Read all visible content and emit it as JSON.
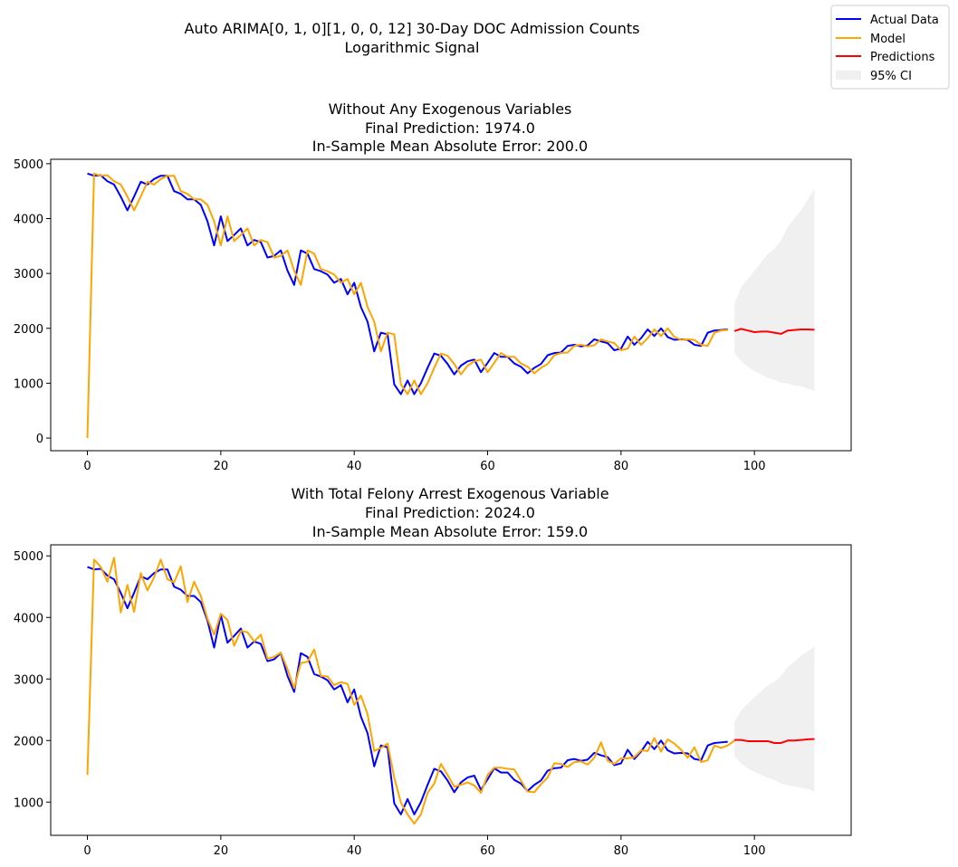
{
  "suptitle": [
    "Auto ARIMA[0, 1, 0][1, 0, 0, 12] 30-Day DOC Admission Counts",
    "Logarithmic Signal"
  ],
  "legend": {
    "placement": "top-right",
    "entries": [
      {
        "label": "Actual Data",
        "color": "#0000ff",
        "kind": "line"
      },
      {
        "label": "Model",
        "color": "#ffa500",
        "kind": "line"
      },
      {
        "label": "Predictions",
        "color": "#ff0000",
        "kind": "line"
      },
      {
        "label": "95% CI",
        "color": "#d3d3d3",
        "kind": "patch"
      }
    ]
  },
  "chart_data": [
    {
      "type": "line",
      "title": [
        "Without Any Exogenous Variables",
        "Final Prediction: 1974.0",
        "In-Sample Mean Absolute Error: 200.0"
      ],
      "xlim": [
        -5.5,
        114.5
      ],
      "ylim": [
        -230,
        5080
      ],
      "xticks": [
        0,
        20,
        40,
        60,
        80,
        100
      ],
      "yticks": [
        0,
        1000,
        2000,
        3000,
        4000,
        5000
      ],
      "series": [
        {
          "name": "Actual Data",
          "color": "#0000ff",
          "x0": 0,
          "values": [
            4820,
            4780,
            4790,
            4680,
            4620,
            4400,
            4150,
            4400,
            4670,
            4620,
            4720,
            4780,
            4780,
            4500,
            4450,
            4350,
            4350,
            4250,
            3950,
            3510,
            4040,
            3590,
            3700,
            3820,
            3510,
            3610,
            3570,
            3290,
            3320,
            3420,
            3050,
            2790,
            3420,
            3360,
            3080,
            3040,
            2980,
            2830,
            2900,
            2620,
            2830,
            2390,
            2120,
            1580,
            1920,
            1890,
            980,
            800,
            1050,
            800,
            1000,
            1280,
            1540,
            1500,
            1350,
            1160,
            1320,
            1400,
            1430,
            1200,
            1370,
            1550,
            1480,
            1480,
            1360,
            1300,
            1180,
            1280,
            1350,
            1510,
            1550,
            1560,
            1680,
            1700,
            1670,
            1690,
            1800,
            1760,
            1730,
            1600,
            1630,
            1850,
            1700,
            1820,
            1980,
            1860,
            2000,
            1840,
            1790,
            1800,
            1790,
            1700,
            1680,
            1920,
            1960,
            1970,
            1980
          ]
        },
        {
          "name": "Model",
          "color": "#ffa500",
          "x0": 0,
          "values": [
            0,
            4820,
            4780,
            4790,
            4680,
            4620,
            4400,
            4150,
            4400,
            4670,
            4620,
            4720,
            4780,
            4780,
            4500,
            4450,
            4350,
            4350,
            4250,
            3950,
            3510,
            4040,
            3590,
            3700,
            3820,
            3510,
            3610,
            3570,
            3290,
            3320,
            3420,
            3050,
            2790,
            3420,
            3360,
            3080,
            3040,
            2980,
            2830,
            2900,
            2620,
            2830,
            2390,
            2120,
            1580,
            1920,
            1890,
            980,
            800,
            1050,
            800,
            1000,
            1280,
            1540,
            1500,
            1350,
            1160,
            1320,
            1400,
            1430,
            1200,
            1370,
            1550,
            1480,
            1480,
            1360,
            1300,
            1180,
            1280,
            1350,
            1510,
            1550,
            1560,
            1680,
            1700,
            1670,
            1690,
            1800,
            1760,
            1730,
            1600,
            1630,
            1850,
            1700,
            1820,
            1980,
            1860,
            2000,
            1840,
            1790,
            1800,
            1790,
            1700,
            1680,
            1920,
            1960,
            1970
          ]
        },
        {
          "name": "Predictions",
          "color": "#ff0000",
          "x0": 97,
          "values": [
            1950,
            1990,
            1960,
            1930,
            1940,
            1940,
            1920,
            1900,
            1960,
            1970,
            1980,
            1980,
            1974
          ]
        }
      ],
      "ci": {
        "x0": 97,
        "upper": [
          2450,
          2750,
          2900,
          3050,
          3200,
          3350,
          3450,
          3600,
          3850,
          4000,
          4150,
          4350,
          4540
        ],
        "lower": [
          1560,
          1400,
          1300,
          1220,
          1160,
          1100,
          1060,
          1010,
          990,
          960,
          940,
          900,
          860
        ]
      }
    },
    {
      "type": "line",
      "title": [
        "With Total Felony Arrest Exogenous Variable",
        "Final Prediction: 2024.0",
        "In-Sample Mean Absolute Error: 159.0"
      ],
      "xlim": [
        -5.5,
        114.5
      ],
      "ylim": [
        460,
        5180
      ],
      "xticks": [
        0,
        20,
        40,
        60,
        80,
        100
      ],
      "yticks": [
        1000,
        2000,
        3000,
        4000,
        5000
      ],
      "series": [
        {
          "name": "Actual Data",
          "color": "#0000ff",
          "x0": 0,
          "values": [
            4820,
            4780,
            4790,
            4680,
            4620,
            4400,
            4150,
            4400,
            4670,
            4620,
            4720,
            4780,
            4780,
            4500,
            4450,
            4350,
            4350,
            4250,
            3950,
            3510,
            4040,
            3590,
            3700,
            3820,
            3510,
            3610,
            3570,
            3290,
            3320,
            3420,
            3050,
            2790,
            3420,
            3360,
            3080,
            3040,
            2980,
            2830,
            2900,
            2620,
            2830,
            2390,
            2120,
            1580,
            1920,
            1890,
            980,
            800,
            1050,
            800,
            1000,
            1280,
            1540,
            1500,
            1350,
            1160,
            1320,
            1400,
            1430,
            1200,
            1370,
            1550,
            1480,
            1480,
            1360,
            1300,
            1180,
            1280,
            1350,
            1510,
            1550,
            1560,
            1680,
            1700,
            1670,
            1690,
            1800,
            1760,
            1730,
            1600,
            1630,
            1850,
            1700,
            1820,
            1980,
            1860,
            2000,
            1840,
            1790,
            1800,
            1790,
            1700,
            1680,
            1920,
            1960,
            1970,
            1980
          ]
        },
        {
          "name": "Model",
          "color": "#ffa500",
          "x0": 0,
          "values": [
            1440,
            4940,
            4820,
            4580,
            4970,
            4080,
            4530,
            4090,
            4720,
            4440,
            4650,
            4940,
            4620,
            4570,
            4830,
            4250,
            4580,
            4350,
            3980,
            3720,
            4060,
            3960,
            3540,
            3780,
            3760,
            3610,
            3720,
            3330,
            3360,
            3430,
            3160,
            2850,
            3260,
            3280,
            3480,
            3050,
            3040,
            2900,
            2950,
            2920,
            2580,
            2730,
            2430,
            1830,
            1880,
            1950,
            1400,
            990,
            800,
            650,
            800,
            1150,
            1300,
            1620,
            1440,
            1250,
            1280,
            1320,
            1270,
            1150,
            1440,
            1560,
            1560,
            1540,
            1530,
            1350,
            1170,
            1160,
            1290,
            1400,
            1630,
            1620,
            1570,
            1650,
            1660,
            1610,
            1720,
            1970,
            1670,
            1620,
            1710,
            1710,
            1730,
            1840,
            1830,
            2040,
            1820,
            2020,
            1950,
            1850,
            1720,
            1890,
            1650,
            1680,
            1920,
            1880,
            1920,
            2000
          ]
        },
        {
          "name": "Predictions",
          "color": "#ff0000",
          "x0": 97,
          "values": [
            2010,
            2010,
            1990,
            1990,
            1990,
            1990,
            1960,
            1960,
            2000,
            2000,
            2010,
            2020,
            2024
          ]
        }
      ],
      "ci": {
        "x0": 97,
        "upper": [
          2300,
          2490,
          2600,
          2700,
          2800,
          2900,
          2950,
          3050,
          3200,
          3280,
          3380,
          3450,
          3530
        ],
        "lower": [
          1750,
          1630,
          1550,
          1490,
          1440,
          1400,
          1360,
          1300,
          1270,
          1260,
          1230,
          1210,
          1170
        ]
      }
    }
  ]
}
